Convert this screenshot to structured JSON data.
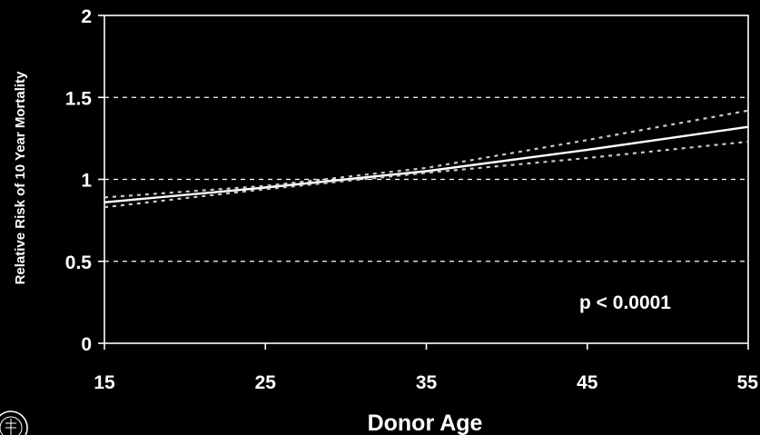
{
  "chart_data": {
    "type": "line",
    "xlabel": "Donor Age",
    "ylabel": "Relative Risk of 10 Year Mortality",
    "xlim": [
      15,
      55
    ],
    "ylim": [
      0,
      2
    ],
    "x_ticks": [
      "15",
      "25",
      "35",
      "45",
      "55"
    ],
    "y_ticks": [
      "0",
      "0.5",
      "1",
      "1.5",
      "2"
    ],
    "grid": "horizontal dashed",
    "annotation": "p < 0.0001",
    "series": [
      {
        "role": "estimate",
        "x": [
          15,
          25,
          35,
          45,
          55
        ],
        "y": [
          0.86,
          0.95,
          1.05,
          1.18,
          1.32
        ]
      },
      {
        "role": "upper-ci",
        "x": [
          15,
          25,
          35,
          45,
          55
        ],
        "y": [
          0.89,
          0.96,
          1.07,
          1.24,
          1.42
        ]
      },
      {
        "role": "lower-ci",
        "x": [
          15,
          25,
          35,
          45,
          55
        ],
        "y": [
          0.83,
          0.94,
          1.04,
          1.13,
          1.23
        ]
      }
    ],
    "colors": {
      "background": "#000000",
      "foreground": "#ffffff",
      "ci": "#c8c8c8"
    }
  },
  "logo": {
    "icon": "seal-icon"
  }
}
